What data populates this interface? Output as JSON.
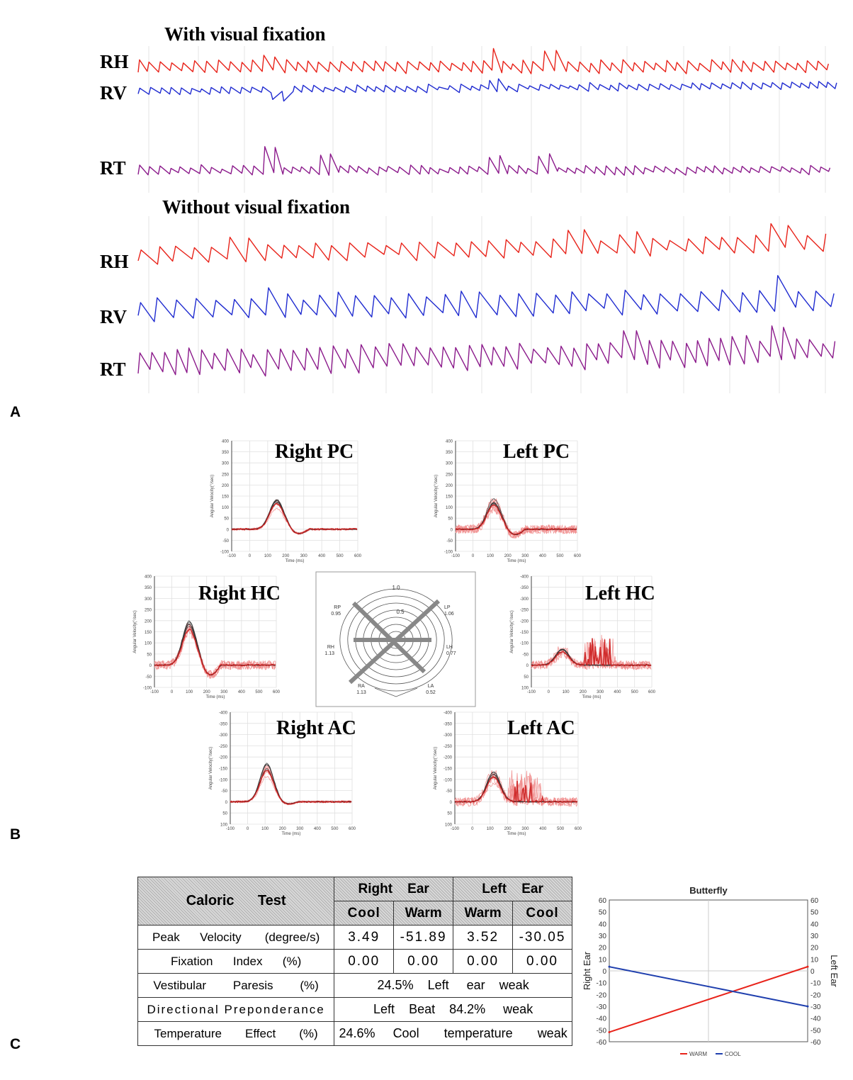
{
  "panel_letters": {
    "a": "A",
    "b": "B",
    "c": "C"
  },
  "panel_a": {
    "section_with": "With visual fixation",
    "section_without": "Without visual fixation",
    "channels": [
      "RH",
      "RV",
      "RT"
    ],
    "colors": {
      "RH": "#e8231a",
      "RV": "#1f2bd0",
      "RT": "#8b1a8b"
    }
  },
  "panel_b": {
    "y_axis_label": "Angular Velocity(°/sec)",
    "x_axis_label": "Time (ms)",
    "x_ticks": [
      "-100",
      "0",
      "100",
      "200",
      "300",
      "400",
      "500",
      "600"
    ],
    "plots": [
      {
        "title": "Right PC",
        "y_ticks": [
          "400",
          "350",
          "300",
          "250",
          "200",
          "150",
          "100",
          "50",
          "0",
          "-50",
          "-100"
        ]
      },
      {
        "title": "Left PC",
        "y_ticks": [
          "400",
          "350",
          "300",
          "250",
          "200",
          "150",
          "100",
          "50",
          "0",
          "-50",
          "-100"
        ]
      },
      {
        "title": "Right HC",
        "y_ticks": [
          "400",
          "350",
          "300",
          "250",
          "200",
          "150",
          "100",
          "50",
          "0",
          "-50",
          "-100"
        ]
      },
      {
        "title": "Left HC",
        "y_ticks": [
          "-400",
          "-350",
          "-300",
          "-250",
          "-200",
          "-150",
          "-100",
          "-50",
          "0",
          "50",
          "100"
        ]
      },
      {
        "title": "Right AC",
        "y_ticks": [
          "-400",
          "-350",
          "-300",
          "-250",
          "-200",
          "-150",
          "-100",
          "-50",
          "0",
          "50",
          "100"
        ]
      },
      {
        "title": "Left AC",
        "y_ticks": [
          "-400",
          "-350",
          "-300",
          "-250",
          "-200",
          "-150",
          "-100",
          "-50",
          "0",
          "50",
          "100"
        ]
      }
    ],
    "polar": {
      "ring_labels": [
        "1.0",
        "0.5"
      ],
      "canals": [
        {
          "name": "RP",
          "value": "0.95"
        },
        {
          "name": "LP",
          "value": "1.06"
        },
        {
          "name": "RH",
          "value": "1.13"
        },
        {
          "name": "LH",
          "value": "0.77"
        },
        {
          "name": "RA",
          "value": "1.13"
        },
        {
          "name": "LA",
          "value": "0.52"
        }
      ]
    },
    "colors": {
      "patient": "#cc1f1f",
      "patient_light": "#f08a8a",
      "normal": "#333333"
    }
  },
  "caloric_table": {
    "title_1": "Caloric",
    "title_2": "Test",
    "right_ear_1": "Right",
    "right_ear_2": "Ear",
    "left_ear_1": "Left",
    "left_ear_2": "Ear",
    "sub_headers": [
      "Cool",
      "Warm",
      "Warm",
      "Cool"
    ],
    "rows": [
      {
        "label_parts": [
          "Peak",
          "Velocity",
          "(degree/s)"
        ],
        "values": [
          "3.49",
          "-51.89",
          "3.52",
          "-30.05"
        ]
      },
      {
        "label_parts": [
          "Fixation",
          "Index",
          "(%)"
        ],
        "values": [
          "0.00",
          "0.00",
          "0.00",
          "0.00"
        ]
      },
      {
        "label_parts": [
          "Vestibular",
          "Paresis",
          "(%)"
        ],
        "merged_parts": [
          "24.5%",
          "Left",
          "ear",
          "weak"
        ]
      },
      {
        "label_parts": [
          "Directional Preponderance"
        ],
        "merged_parts": [
          "Left",
          "Beat",
          "84.2%",
          "weak"
        ]
      },
      {
        "label_parts": [
          "Temperature",
          "Effect",
          "(%)"
        ],
        "merged_parts": [
          "24.6%",
          "Cool",
          "temperature",
          "weak"
        ]
      }
    ]
  },
  "chart_data": {
    "type": "line",
    "title": "Butterfly",
    "ylabel_left": "Right Ear",
    "ylabel_right": "Left Ear",
    "x": [
      "Right Ear",
      "Left Ear"
    ],
    "ylim": [
      -60,
      60
    ],
    "y_ticks": [
      60,
      50,
      40,
      30,
      20,
      10,
      0,
      -10,
      -20,
      -30,
      -40,
      -50,
      -60
    ],
    "grid": true,
    "legend_position": "bottom",
    "series": [
      {
        "name": "WARM",
        "color": "#e8231a",
        "values": [
          -51.89,
          3.52
        ]
      },
      {
        "name": "COOL",
        "color": "#1f3fae",
        "values": [
          3.49,
          -30.05
        ]
      }
    ]
  }
}
